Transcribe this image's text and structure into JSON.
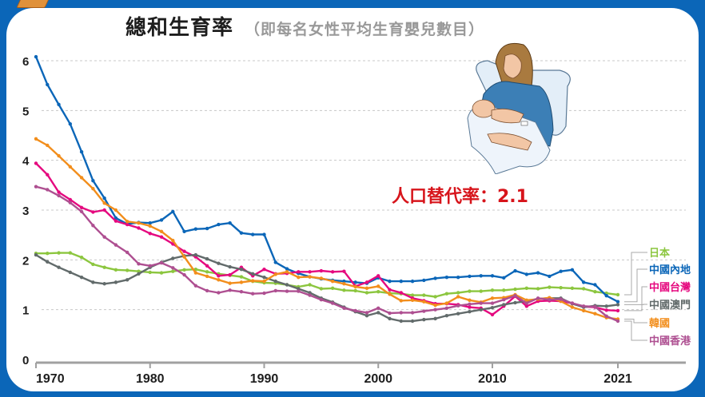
{
  "header": {
    "title": "總和生育率",
    "subtitle": "（即每名女性平均生育嬰兒數目）"
  },
  "annotation": {
    "replacement_rate": "人口替代率：2.1"
  },
  "illustration": {
    "icon": "mother-holding-baby-illustration"
  },
  "chart_data": {
    "type": "line",
    "title": "總和生育率（即每名女性平均生育嬰兒數目）",
    "xlabel": "",
    "ylabel": "",
    "ylim": [
      0,
      6
    ],
    "xlim": [
      1970,
      2021
    ],
    "y_ticks": [
      "0",
      "1",
      "2",
      "3",
      "4",
      "5",
      "6"
    ],
    "x_ticks": [
      "1970",
      "1980",
      "1990",
      "2000",
      "2010",
      "2021"
    ],
    "grid": "horizontal dashed",
    "legend_position": "right, labels at line ends",
    "annotation": "人口替代率：2.1",
    "x": [
      1970,
      1971,
      1972,
      1973,
      1974,
      1975,
      1976,
      1977,
      1978,
      1979,
      1980,
      1981,
      1982,
      1983,
      1984,
      1985,
      1986,
      1987,
      1988,
      1989,
      1990,
      1991,
      1992,
      1993,
      1994,
      1995,
      1996,
      1997,
      1998,
      1999,
      2000,
      2001,
      2002,
      2003,
      2004,
      2005,
      2006,
      2007,
      2008,
      2009,
      2010,
      2011,
      2012,
      2013,
      2014,
      2015,
      2016,
      2017,
      2018,
      2019,
      2020,
      2021
    ],
    "series": [
      {
        "name": "日本",
        "color": "#8cc63f",
        "values": [
          2.13,
          2.13,
          2.14,
          2.14,
          2.05,
          1.91,
          1.85,
          1.8,
          1.79,
          1.77,
          1.75,
          1.74,
          1.77,
          1.8,
          1.81,
          1.76,
          1.72,
          1.69,
          1.66,
          1.57,
          1.54,
          1.53,
          1.5,
          1.46,
          1.5,
          1.42,
          1.43,
          1.39,
          1.38,
          1.34,
          1.36,
          1.33,
          1.32,
          1.29,
          1.29,
          1.26,
          1.32,
          1.34,
          1.37,
          1.37,
          1.39,
          1.39,
          1.41,
          1.43,
          1.42,
          1.45,
          1.44,
          1.43,
          1.42,
          1.36,
          1.33,
          1.3
        ]
      },
      {
        "name": "中國內地",
        "color": "#0b66b8",
        "values": [
          6.08,
          5.52,
          5.12,
          4.73,
          4.17,
          3.59,
          3.24,
          2.84,
          2.72,
          2.75,
          2.74,
          2.8,
          2.97,
          2.57,
          2.62,
          2.63,
          2.71,
          2.74,
          2.54,
          2.51,
          2.51,
          1.95,
          1.82,
          1.73,
          1.66,
          1.62,
          1.59,
          1.57,
          1.55,
          1.53,
          1.64,
          1.57,
          1.57,
          1.57,
          1.59,
          1.63,
          1.65,
          1.65,
          1.67,
          1.68,
          1.68,
          1.64,
          1.78,
          1.71,
          1.74,
          1.67,
          1.77,
          1.8,
          1.55,
          1.5,
          1.28,
          1.16
        ]
      },
      {
        "name": "中國台灣",
        "color": "#e5097f",
        "values": [
          3.94,
          3.71,
          3.36,
          3.21,
          3.05,
          2.96,
          3.0,
          2.78,
          2.71,
          2.64,
          2.53,
          2.46,
          2.32,
          2.17,
          2.06,
          1.88,
          1.68,
          1.7,
          1.85,
          1.68,
          1.81,
          1.72,
          1.73,
          1.76,
          1.76,
          1.78,
          1.76,
          1.77,
          1.47,
          1.55,
          1.68,
          1.4,
          1.34,
          1.23,
          1.18,
          1.12,
          1.12,
          1.1,
          1.05,
          1.03,
          0.9,
          1.07,
          1.27,
          1.07,
          1.17,
          1.18,
          1.17,
          1.13,
          1.06,
          1.05,
          0.99,
          0.98
        ]
      },
      {
        "name": "中國澳門",
        "color": "#626b6b",
        "values": [
          2.1,
          1.96,
          1.85,
          1.75,
          1.65,
          1.55,
          1.52,
          1.55,
          1.6,
          1.72,
          1.85,
          1.95,
          2.03,
          2.08,
          2.1,
          2.02,
          1.93,
          1.86,
          1.81,
          1.72,
          1.65,
          1.57,
          1.5,
          1.42,
          1.34,
          1.23,
          1.15,
          1.05,
          0.96,
          0.88,
          0.94,
          0.82,
          0.77,
          0.77,
          0.8,
          0.82,
          0.88,
          0.92,
          0.96,
          1.0,
          1.04,
          1.1,
          1.14,
          1.17,
          1.22,
          1.23,
          1.23,
          1.12,
          1.05,
          1.08,
          1.07,
          1.1
        ]
      },
      {
        "name": "韓國",
        "color": "#f28e1c",
        "values": [
          4.43,
          4.3,
          4.09,
          3.87,
          3.65,
          3.43,
          3.14,
          3.0,
          2.77,
          2.74,
          2.68,
          2.57,
          2.39,
          2.06,
          1.74,
          1.67,
          1.6,
          1.53,
          1.55,
          1.58,
          1.57,
          1.71,
          1.76,
          1.65,
          1.66,
          1.63,
          1.57,
          1.52,
          1.46,
          1.43,
          1.47,
          1.31,
          1.18,
          1.19,
          1.16,
          1.09,
          1.13,
          1.26,
          1.19,
          1.15,
          1.23,
          1.24,
          1.3,
          1.19,
          1.21,
          1.24,
          1.17,
          1.05,
          0.98,
          0.92,
          0.84,
          0.81
        ]
      },
      {
        "name": "中國香港",
        "color": "#ae4f91",
        "values": [
          3.47,
          3.41,
          3.29,
          3.15,
          2.97,
          2.69,
          2.46,
          2.3,
          2.15,
          1.92,
          1.88,
          1.94,
          1.84,
          1.7,
          1.48,
          1.38,
          1.34,
          1.39,
          1.36,
          1.32,
          1.33,
          1.38,
          1.37,
          1.37,
          1.29,
          1.2,
          1.13,
          1.03,
          0.98,
          0.94,
          1.03,
          0.93,
          0.94,
          0.94,
          0.97,
          1.0,
          1.03,
          1.08,
          1.11,
          1.13,
          1.13,
          1.2,
          1.28,
          1.13,
          1.23,
          1.2,
          1.21,
          1.13,
          1.07,
          1.06,
          0.87,
          0.77
        ]
      }
    ]
  },
  "legend": [
    {
      "label": "日本",
      "color": "#8cc63f"
    },
    {
      "label": "中國內地",
      "color": "#0b66b8"
    },
    {
      "label": "中國台灣",
      "color": "#e5097f"
    },
    {
      "label": "中國澳門",
      "color": "#626b6b"
    },
    {
      "label": "韓國",
      "color": "#f28e1c"
    },
    {
      "label": "中國香港",
      "color": "#ae4f91"
    }
  ]
}
